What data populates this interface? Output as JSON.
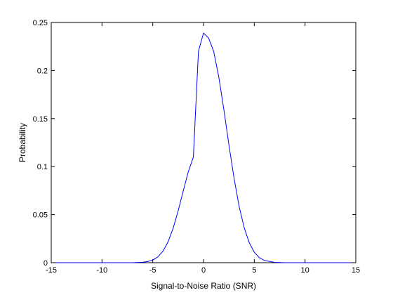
{
  "chart_data": {
    "type": "line",
    "title": "",
    "xlabel": "Signal-to-Noise Ratio (SNR)",
    "ylabel": "Probability",
    "xlim": [
      -15,
      15
    ],
    "ylim": [
      0,
      0.25
    ],
    "x_ticks": [
      -15,
      -10,
      -5,
      0,
      5,
      10,
      15
    ],
    "x_tick_labels": [
      "-15",
      "-10",
      "-5",
      "0",
      "5",
      "10",
      "15"
    ],
    "y_ticks": [
      0,
      0.05,
      0.1,
      0.15,
      0.2,
      0.25
    ],
    "y_tick_labels": [
      "0",
      "0.05",
      "0.1",
      "0.15",
      "0.2",
      "0.25"
    ],
    "grid": false,
    "legend": "none",
    "series": [
      {
        "color": "#0000ff",
        "x": [
          -14.5,
          -13,
          -12,
          -11,
          -10,
          -9,
          -8,
          -7,
          -6,
          -5.5,
          -5,
          -4.5,
          -4,
          -3.5,
          -3,
          -2.5,
          -2,
          -1.5,
          -1,
          -0.5,
          0,
          0.5,
          1,
          1.5,
          2,
          2.5,
          3,
          3.5,
          4,
          4.5,
          5,
          5.5,
          6,
          7,
          8,
          9,
          10,
          11,
          12,
          13,
          14.5
        ],
        "y": [
          0,
          0,
          0,
          0,
          0,
          0,
          0,
          0,
          0.0005,
          0.0012,
          0.0028,
          0.006,
          0.0119,
          0.0215,
          0.0356,
          0.0539,
          0.0746,
          0.0946,
          0.1098,
          0.22,
          0.239,
          0.2338,
          0.22,
          0.1935,
          0.1597,
          0.1227,
          0.0884,
          0.0589,
          0.0366,
          0.0209,
          0.0109,
          0.0052,
          0.0023,
          0.0004,
          0,
          0,
          0,
          0,
          0,
          0,
          0
        ]
      }
    ]
  }
}
